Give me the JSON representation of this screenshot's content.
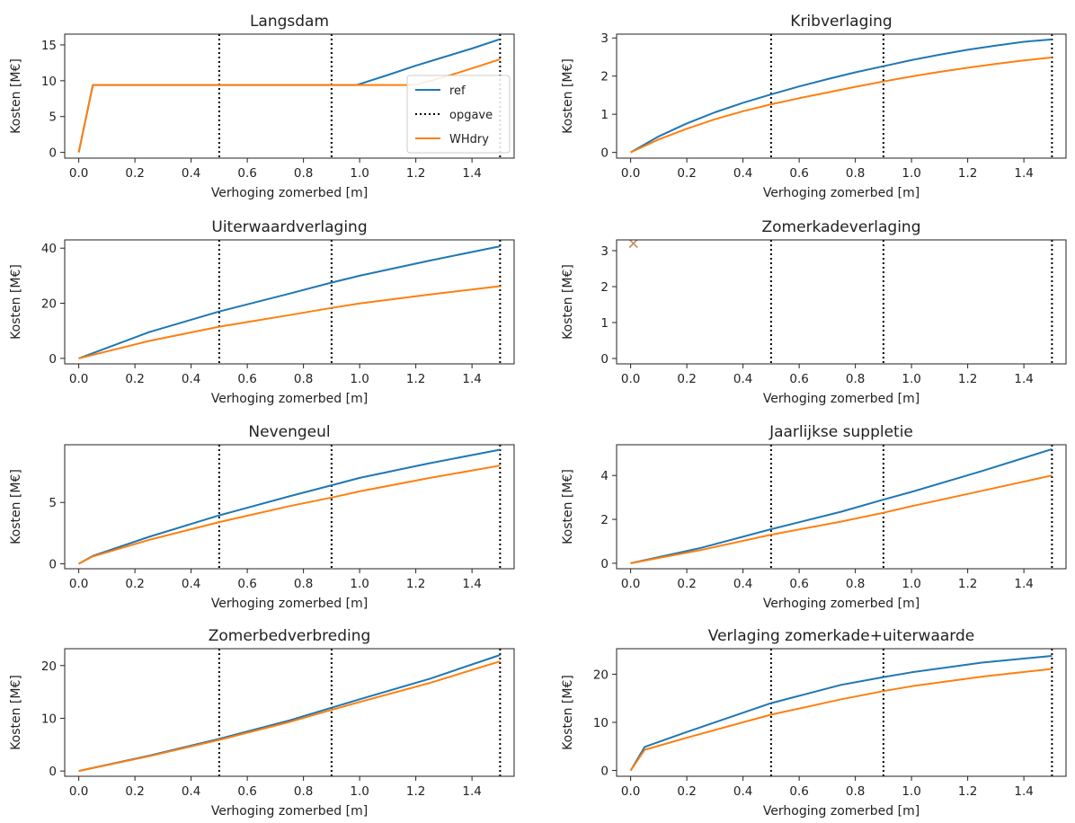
{
  "figure": {
    "colors": {
      "ref": "#1f77b4",
      "opgave": "#000000",
      "WHdry": "#ff7f0e"
    },
    "legend": {
      "entries": [
        "ref",
        "opgave",
        "WHdry"
      ],
      "placement": "right",
      "shown_in_panel": 0
    }
  },
  "chart_data": [
    {
      "type": "line",
      "title": "Langsdam",
      "xlabel": "Verhoging zomerbed [m]",
      "ylabel": "Kosten [M€]",
      "xlim": [
        -0.05,
        1.55
      ],
      "ylim": [
        -0.8,
        16.5
      ],
      "xticks": [
        "0.0",
        "0.2",
        "0.4",
        "0.6",
        "0.8",
        "1.0",
        "1.2",
        "1.4"
      ],
      "yticks": [
        "0",
        "5",
        "10",
        "15"
      ],
      "vlines": [
        0.5,
        0.9,
        1.5
      ],
      "series": [
        {
          "name": "ref",
          "x": [
            0,
            0.05,
            0.2,
            0.5,
            0.9,
            0.99,
            1.1,
            1.2,
            1.3,
            1.4,
            1.5
          ],
          "y": [
            0,
            9.4,
            9.4,
            9.4,
            9.4,
            9.4,
            10.8,
            12.1,
            13.3,
            14.5,
            15.8
          ]
        },
        {
          "name": "WHdry",
          "x": [
            0,
            0.05,
            0.2,
            0.5,
            0.9,
            1.2,
            1.27,
            1.35,
            1.43,
            1.5
          ],
          "y": [
            0,
            9.4,
            9.4,
            9.4,
            9.4,
            9.4,
            10.2,
            11.1,
            12.1,
            13.0
          ]
        }
      ]
    },
    {
      "type": "line",
      "title": "Kribverlaging",
      "xlabel": "Verhoging zomerbed [m]",
      "ylabel": "Kosten [M€]",
      "xlim": [
        -0.05,
        1.55
      ],
      "ylim": [
        -0.15,
        3.1
      ],
      "xticks": [
        "0.0",
        "0.2",
        "0.4",
        "0.6",
        "0.8",
        "1.0",
        "1.2",
        "1.4"
      ],
      "yticks": [
        "0",
        "1",
        "2",
        "3"
      ],
      "vlines": [
        0.5,
        0.9,
        1.5
      ],
      "series": [
        {
          "name": "ref",
          "x": [
            0,
            0.1,
            0.2,
            0.3,
            0.4,
            0.5,
            0.6,
            0.7,
            0.8,
            0.9,
            1.0,
            1.1,
            1.2,
            1.3,
            1.4,
            1.5
          ],
          "y": [
            0,
            0.42,
            0.76,
            1.05,
            1.3,
            1.52,
            1.73,
            1.92,
            2.1,
            2.26,
            2.42,
            2.56,
            2.69,
            2.8,
            2.9,
            2.96
          ]
        },
        {
          "name": "WHdry",
          "x": [
            0,
            0.1,
            0.2,
            0.3,
            0.4,
            0.5,
            0.6,
            0.7,
            0.8,
            0.9,
            1.0,
            1.1,
            1.2,
            1.3,
            1.4,
            1.5
          ],
          "y": [
            0,
            0.34,
            0.62,
            0.87,
            1.08,
            1.26,
            1.42,
            1.57,
            1.72,
            1.86,
            1.99,
            2.11,
            2.22,
            2.32,
            2.41,
            2.49
          ]
        }
      ]
    },
    {
      "type": "line",
      "title": "Uiterwaardverlaging",
      "xlabel": "Verhoging zomerbed [m]",
      "ylabel": "Kosten [M€]",
      "xlim": [
        -0.05,
        1.55
      ],
      "ylim": [
        -2,
        43
      ],
      "xticks": [
        "0.0",
        "0.2",
        "0.4",
        "0.6",
        "0.8",
        "1.0",
        "1.2",
        "1.4"
      ],
      "yticks": [
        "0",
        "20",
        "40"
      ],
      "vlines": [
        0.5,
        0.9,
        1.5
      ],
      "series": [
        {
          "name": "ref",
          "x": [
            0,
            0.25,
            0.5,
            0.75,
            0.9,
            1.0,
            1.25,
            1.5
          ],
          "y": [
            0,
            9.5,
            17.0,
            23.5,
            27.5,
            30.0,
            35.5,
            40.7
          ]
        },
        {
          "name": "WHdry",
          "x": [
            0,
            0.25,
            0.5,
            0.75,
            0.9,
            1.0,
            1.25,
            1.5
          ],
          "y": [
            0,
            6.3,
            11.5,
            15.7,
            18.3,
            19.9,
            23.2,
            26.2
          ]
        }
      ]
    },
    {
      "type": "scatter",
      "title": "Zomerkadeverlaging",
      "xlabel": "Verhoging zomerbed [m]",
      "ylabel": "Kosten [M€]",
      "xlim": [
        -0.05,
        1.55
      ],
      "ylim": [
        -0.15,
        3.3
      ],
      "xticks": [
        "0.0",
        "0.2",
        "0.4",
        "0.6",
        "0.8",
        "1.0",
        "1.2",
        "1.4"
      ],
      "yticks": [
        "0",
        "1",
        "2",
        "3"
      ],
      "vlines": [
        0.5,
        0.9,
        1.5
      ],
      "series": [
        {
          "name": "ref",
          "x": [
            0.01
          ],
          "y": [
            3.2
          ]
        },
        {
          "name": "WHdry",
          "x": [
            0.01
          ],
          "y": [
            3.2
          ]
        }
      ]
    },
    {
      "type": "line",
      "title": "Nevengeul",
      "xlabel": "Verhoging zomerbed [m]",
      "ylabel": "Kosten [M€]",
      "xlim": [
        -0.05,
        1.55
      ],
      "ylim": [
        -0.4,
        9.7
      ],
      "xticks": [
        "0.0",
        "0.2",
        "0.4",
        "0.6",
        "0.8",
        "1.0",
        "1.2",
        "1.4"
      ],
      "yticks": [
        "0",
        "5"
      ],
      "vlines": [
        0.5,
        0.9,
        1.5
      ],
      "series": [
        {
          "name": "ref",
          "x": [
            0,
            0.05,
            0.25,
            0.5,
            0.75,
            0.9,
            1.0,
            1.25,
            1.5
          ],
          "y": [
            0,
            0.65,
            2.2,
            3.95,
            5.5,
            6.4,
            7.0,
            8.2,
            9.3
          ]
        },
        {
          "name": "WHdry",
          "x": [
            0,
            0.05,
            0.25,
            0.5,
            0.75,
            0.9,
            1.0,
            1.25,
            1.5
          ],
          "y": [
            0,
            0.6,
            1.95,
            3.4,
            4.7,
            5.4,
            5.9,
            7.0,
            8.0
          ]
        }
      ]
    },
    {
      "type": "line",
      "title": "Jaarlijkse suppletie",
      "xlabel": "Verhoging zomerbed [m]",
      "ylabel": "Kosten [M€]",
      "xlim": [
        -0.05,
        1.55
      ],
      "ylim": [
        -0.25,
        5.4
      ],
      "xticks": [
        "0.0",
        "0.2",
        "0.4",
        "0.6",
        "0.8",
        "1.0",
        "1.2",
        "1.4"
      ],
      "yticks": [
        "0",
        "2",
        "4"
      ],
      "vlines": [
        0.5,
        0.9,
        1.5
      ],
      "series": [
        {
          "name": "ref",
          "x": [
            0,
            0.25,
            0.5,
            0.75,
            0.9,
            1.0,
            1.25,
            1.5
          ],
          "y": [
            0,
            0.7,
            1.55,
            2.35,
            2.9,
            3.25,
            4.2,
            5.2
          ]
        },
        {
          "name": "WHdry",
          "x": [
            0,
            0.25,
            0.5,
            0.75,
            0.9,
            1.0,
            1.25,
            1.5
          ],
          "y": [
            0,
            0.6,
            1.3,
            1.9,
            2.3,
            2.6,
            3.3,
            4.0
          ]
        }
      ]
    },
    {
      "type": "line",
      "title": "Zomerbedverbreding",
      "xlabel": "Verhoging zomerbed [m]",
      "ylabel": "Kosten [M€]",
      "xlim": [
        -0.05,
        1.55
      ],
      "ylim": [
        -1,
        23.2
      ],
      "xticks": [
        "0.0",
        "0.2",
        "0.4",
        "0.6",
        "0.8",
        "1.0",
        "1.2",
        "1.4"
      ],
      "yticks": [
        "0",
        "10",
        "20"
      ],
      "vlines": [
        0.5,
        0.9,
        1.5
      ],
      "series": [
        {
          "name": "ref",
          "x": [
            0,
            0.25,
            0.5,
            0.75,
            0.9,
            1.0,
            1.25,
            1.5
          ],
          "y": [
            0,
            2.9,
            6.1,
            9.6,
            12.0,
            13.6,
            17.5,
            22.0
          ]
        },
        {
          "name": "WHdry",
          "x": [
            0,
            0.25,
            0.5,
            0.75,
            0.9,
            1.0,
            1.25,
            1.5
          ],
          "y": [
            0,
            2.8,
            5.9,
            9.3,
            11.6,
            13.1,
            16.7,
            20.8
          ]
        }
      ]
    },
    {
      "type": "line",
      "title": "Verlaging zomerkade+uiterwaarde",
      "xlabel": "Verhoging zomerbed [m]",
      "ylabel": "Kosten [M€]",
      "xlim": [
        -0.05,
        1.55
      ],
      "ylim": [
        -1.2,
        25.3
      ],
      "xticks": [
        "0.0",
        "0.2",
        "0.4",
        "0.6",
        "0.8",
        "1.0",
        "1.2",
        "1.4"
      ],
      "yticks": [
        "0",
        "10",
        "20"
      ],
      "vlines": [
        0.5,
        0.9,
        1.5
      ],
      "series": [
        {
          "name": "ref",
          "x": [
            0,
            0.05,
            0.2,
            0.5,
            0.75,
            0.9,
            1.0,
            1.25,
            1.5
          ],
          "y": [
            0,
            4.9,
            8.0,
            14.0,
            17.8,
            19.4,
            20.4,
            22.4,
            23.8
          ]
        },
        {
          "name": "WHdry",
          "x": [
            0,
            0.05,
            0.2,
            0.5,
            0.75,
            0.9,
            1.0,
            1.25,
            1.5
          ],
          "y": [
            0,
            4.3,
            6.8,
            11.6,
            14.8,
            16.5,
            17.5,
            19.5,
            21.1
          ]
        }
      ]
    }
  ]
}
